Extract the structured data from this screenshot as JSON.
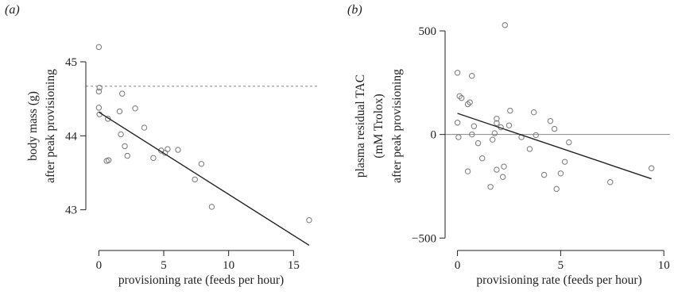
{
  "chart_data": [
    {
      "type": "scatter",
      "panel_label": "(a)",
      "xlabel": "provisioning rate (feeds per hour)",
      "ylabel": [
        "body mass (g)",
        "after peak provisioning"
      ],
      "xlim": [
        -1,
        17
      ],
      "ylim": [
        42.45,
        45.6
      ],
      "xticks": [
        0,
        5,
        10,
        15
      ],
      "yticks": [
        43,
        44,
        45
      ],
      "grid": false,
      "reference_line": {
        "y": 44.67,
        "style": "dashed"
      },
      "trend_line": {
        "x": [
          0,
          16.2
        ],
        "y": [
          44.32,
          42.52
        ]
      },
      "points": [
        {
          "x": 0.0,
          "y": 45.2
        },
        {
          "x": 0.05,
          "y": 44.65
        },
        {
          "x": 0.0,
          "y": 44.6
        },
        {
          "x": 0.0,
          "y": 44.38
        },
        {
          "x": 0.05,
          "y": 44.29
        },
        {
          "x": 0.7,
          "y": 44.23
        },
        {
          "x": 0.6,
          "y": 43.66
        },
        {
          "x": 0.75,
          "y": 43.67
        },
        {
          "x": 1.6,
          "y": 44.33
        },
        {
          "x": 1.8,
          "y": 44.57
        },
        {
          "x": 1.7,
          "y": 44.02
        },
        {
          "x": 2.0,
          "y": 43.86
        },
        {
          "x": 2.2,
          "y": 43.73
        },
        {
          "x": 2.8,
          "y": 44.37
        },
        {
          "x": 3.5,
          "y": 44.11
        },
        {
          "x": 4.2,
          "y": 43.7
        },
        {
          "x": 4.8,
          "y": 43.8
        },
        {
          "x": 5.1,
          "y": 43.77
        },
        {
          "x": 5.3,
          "y": 43.82
        },
        {
          "x": 6.1,
          "y": 43.81
        },
        {
          "x": 7.4,
          "y": 43.41
        },
        {
          "x": 7.9,
          "y": 43.62
        },
        {
          "x": 8.7,
          "y": 43.04
        },
        {
          "x": 16.2,
          "y": 42.86
        }
      ]
    },
    {
      "type": "scatter",
      "panel_label": "(b)",
      "xlabel": "provisioning rate (feeds per hour)",
      "ylabel": [
        "plasma residual TAC",
        "(mM Trolox)",
        "after peak provisioning"
      ],
      "xlim": [
        -0.6,
        10.3
      ],
      "ylim": [
        -560,
        565
      ],
      "xticks": [
        0,
        5,
        10
      ],
      "yticks": [
        -500,
        0,
        500
      ],
      "grid": false,
      "reference_line": {
        "y": 0,
        "style": "solid"
      },
      "trend_line": {
        "x": [
          0,
          9.4
        ],
        "y": [
          102,
          -214
        ]
      },
      "points": [
        {
          "x": 0.0,
          "y": 298
        },
        {
          "x": 0.1,
          "y": 185
        },
        {
          "x": 0.2,
          "y": 176
        },
        {
          "x": 0.0,
          "y": 57
        },
        {
          "x": 0.05,
          "y": -13
        },
        {
          "x": 0.5,
          "y": 146
        },
        {
          "x": 0.6,
          "y": 155
        },
        {
          "x": 0.7,
          "y": 283
        },
        {
          "x": 0.7,
          "y": 0
        },
        {
          "x": 0.8,
          "y": 40
        },
        {
          "x": 0.5,
          "y": -178
        },
        {
          "x": 1.0,
          "y": -42
        },
        {
          "x": 1.2,
          "y": -115
        },
        {
          "x": 1.6,
          "y": -253
        },
        {
          "x": 1.7,
          "y": -25
        },
        {
          "x": 1.8,
          "y": 6
        },
        {
          "x": 1.9,
          "y": 76
        },
        {
          "x": 1.9,
          "y": 55
        },
        {
          "x": 1.9,
          "y": -170
        },
        {
          "x": 2.1,
          "y": 35
        },
        {
          "x": 2.2,
          "y": -205
        },
        {
          "x": 2.25,
          "y": -155
        },
        {
          "x": 2.3,
          "y": 528
        },
        {
          "x": 2.5,
          "y": 44
        },
        {
          "x": 2.55,
          "y": 115
        },
        {
          "x": 3.1,
          "y": -13
        },
        {
          "x": 3.5,
          "y": -70
        },
        {
          "x": 3.7,
          "y": 107
        },
        {
          "x": 3.8,
          "y": -3
        },
        {
          "x": 4.2,
          "y": -195
        },
        {
          "x": 4.5,
          "y": 65
        },
        {
          "x": 4.7,
          "y": 27
        },
        {
          "x": 4.8,
          "y": -263
        },
        {
          "x": 5.0,
          "y": -188
        },
        {
          "x": 5.2,
          "y": -132
        },
        {
          "x": 5.4,
          "y": -38
        },
        {
          "x": 7.4,
          "y": -230
        },
        {
          "x": 9.4,
          "y": -163
        }
      ]
    }
  ]
}
